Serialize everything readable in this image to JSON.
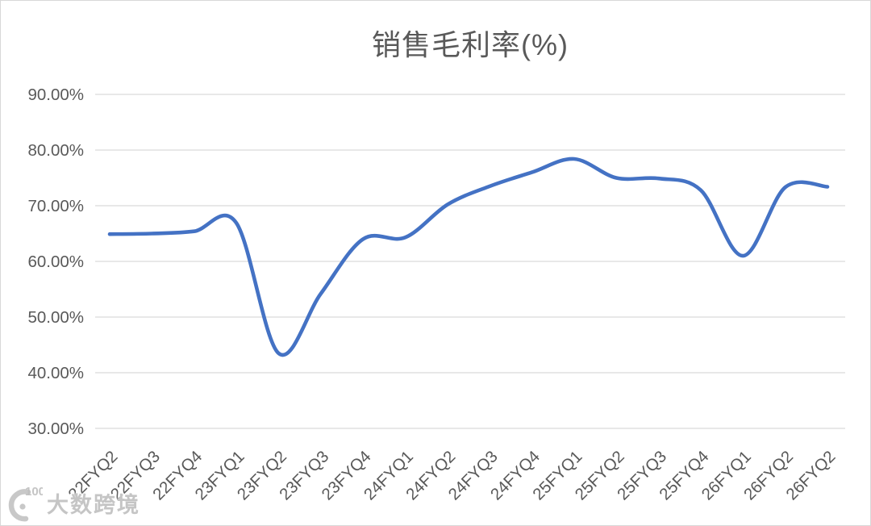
{
  "chart_data": {
    "type": "line",
    "title": "销售毛利率(%)",
    "categories": [
      "22FYQ2",
      "22FYQ3",
      "22FYQ4",
      "23FYQ1",
      "23FYQ2",
      "23FYQ3",
      "23FYQ4",
      "24FYQ1",
      "24FYQ2",
      "24FYQ3",
      "24FYQ4",
      "25FYQ1",
      "25FYQ2",
      "25FYQ3",
      "25FYQ4",
      "26FYQ1",
      "26FYQ2",
      "26FYQ2"
    ],
    "values": [
      64.9,
      65.0,
      65.4,
      66.9,
      43.5,
      54.2,
      64.0,
      64.3,
      70.2,
      73.5,
      76.0,
      78.4,
      75.0,
      74.9,
      72.8,
      61.0,
      73.3,
      73.4
    ],
    "unit": "%",
    "ylim": [
      30,
      90
    ],
    "y_ticks": {
      "values": [
        30,
        40,
        50,
        60,
        70,
        80,
        90
      ],
      "labels": [
        "30.00%",
        "40.00%",
        "50.00%",
        "60.00%",
        "70.00%",
        "80.00%",
        "90.00%"
      ]
    },
    "xlabel": "",
    "ylabel": "",
    "grid": true,
    "legend": "none",
    "smooth": true,
    "x_label_rotation_deg": 45,
    "colors": {
      "series": "#4472C4",
      "gridline": "#D9D9D9",
      "tick_label": "#595959",
      "title": "#595959"
    }
  },
  "watermark": {
    "text": "大数跨境",
    "logo_badge": "100"
  }
}
